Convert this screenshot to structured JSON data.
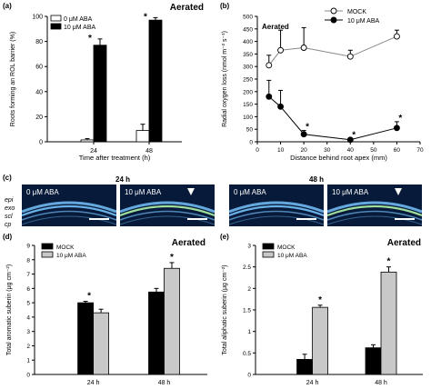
{
  "panel_labels": {
    "a": "(a)",
    "b": "(b)",
    "c": "(c)",
    "d": "(d)",
    "e": "(e)"
  },
  "chart_data": [
    {
      "id": "a",
      "type": "bar",
      "title": "Aerated",
      "xlabel": "Time after treatment (h)",
      "ylabel": "Roots forming an ROL barrier (%)",
      "categories": [
        "24",
        "48"
      ],
      "ylim": [
        0,
        100
      ],
      "yticks": [
        "0",
        "20",
        "40",
        "60",
        "80",
        "100"
      ],
      "series": [
        {
          "name": "0 μM ABA",
          "color": "#ffffff",
          "values": [
            1.5,
            9
          ],
          "errors": [
            1,
            5
          ]
        },
        {
          "name": "10 μM ABA",
          "color": "#000000",
          "values": [
            77,
            97
          ],
          "errors": [
            5,
            2
          ]
        }
      ],
      "significance": [
        "*",
        "*"
      ],
      "legend": "top-left"
    },
    {
      "id": "b",
      "type": "line",
      "title": "Aerated",
      "xlabel": "Distance behind root apex (mm)",
      "ylabel": "Radial oxygen loss (nmol m⁻² s⁻¹)",
      "xlim": [
        0,
        70
      ],
      "ylim": [
        0,
        500
      ],
      "xticks": [
        "0",
        "10",
        "20",
        "30",
        "40",
        "50",
        "60",
        "70"
      ],
      "yticks": [
        "0",
        "50",
        "100",
        "150",
        "200",
        "250",
        "300",
        "350",
        "400",
        "450",
        "500"
      ],
      "series": [
        {
          "name": "MOCK",
          "marker": "open",
          "x": [
            5,
            10,
            20,
            40,
            60
          ],
          "y": [
            305,
            365,
            375,
            340,
            420
          ],
          "errors": [
            40,
            80,
            80,
            25,
            25
          ]
        },
        {
          "name": "10 μM ABA",
          "marker": "filled",
          "x": [
            5,
            10,
            20,
            40,
            60
          ],
          "y": [
            180,
            140,
            30,
            8,
            55
          ],
          "errors": [
            65,
            65,
            15,
            5,
            25
          ],
          "significance": [
            "",
            "",
            "*",
            "*",
            "*"
          ]
        }
      ],
      "legend": "top-right"
    },
    {
      "id": "d",
      "type": "bar",
      "title": "Aerated",
      "xlabel": "",
      "ylabel": "Total aromatic suberin (μg cm⁻²)",
      "categories": [
        "24 h",
        "48 h"
      ],
      "ylim": [
        0,
        9
      ],
      "yticks": [
        "0",
        "1",
        "2",
        "3",
        "4",
        "5",
        "6",
        "7",
        "8",
        "9"
      ],
      "series": [
        {
          "name": "MOCK",
          "color": "#000000",
          "values": [
            5.0,
            5.75
          ],
          "errors": [
            0.1,
            0.25
          ]
        },
        {
          "name": "10 μM ABA",
          "color": "#c8c8c8",
          "values": [
            4.3,
            7.4
          ],
          "errors": [
            0.25,
            0.4
          ]
        }
      ],
      "significance": [
        "*",
        "*"
      ],
      "legend": "top-left"
    },
    {
      "id": "e",
      "type": "bar",
      "title": "Aerated",
      "xlabel": "",
      "ylabel": "Total aliphatic suberin (μg cm⁻²)",
      "categories": [
        "24 h",
        "48 h"
      ],
      "ylim": [
        0,
        3
      ],
      "yticks": [
        "0",
        "0.5",
        "1",
        "1.5",
        "2",
        "2.5",
        "3"
      ],
      "series": [
        {
          "name": "MOCK",
          "color": "#000000",
          "values": [
            0.35,
            0.62
          ],
          "errors": [
            0.12,
            0.07
          ]
        },
        {
          "name": "10 μM ABA",
          "color": "#c8c8c8",
          "values": [
            1.56,
            2.38
          ],
          "errors": [
            0.05,
            0.12
          ]
        }
      ],
      "significance": [
        "*",
        "*"
      ],
      "legend": "top-left"
    }
  ],
  "micrographs": {
    "time_headers": [
      "24 h",
      "48 h"
    ],
    "images": [
      {
        "label": "0 μM ABA",
        "arrow": false
      },
      {
        "label": "10 μM ABA",
        "arrow": true
      },
      {
        "label": "0 μM ABA",
        "arrow": false
      },
      {
        "label": "10 μM ABA",
        "arrow": true
      }
    ],
    "tissue_labels": [
      "epi",
      "exo",
      "scl",
      "cp"
    ],
    "colors": {
      "background": "#071a3a",
      "tissue": "#6fb8f0",
      "suberin": "#a8e8a0"
    }
  }
}
